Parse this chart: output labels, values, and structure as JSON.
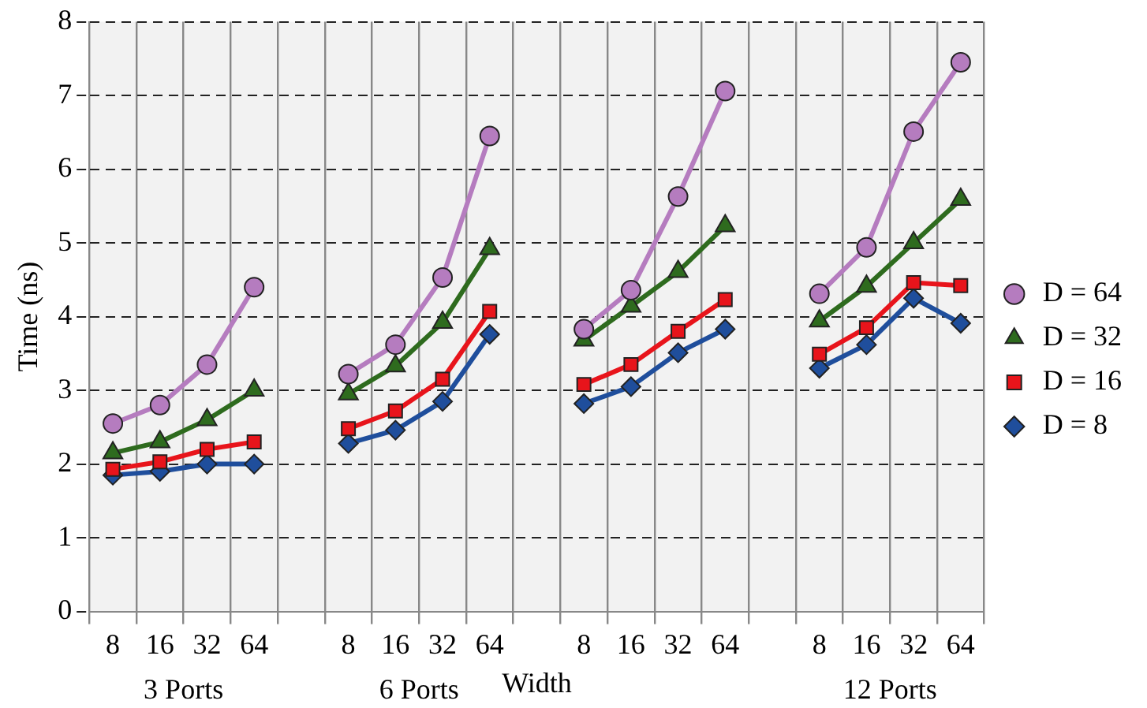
{
  "chart_data": {
    "type": "line",
    "xlabel": "Width",
    "ylabel": "Time (ns)",
    "categories": [
      "8",
      "16",
      "32",
      "64",
      null,
      "8",
      "16",
      "32",
      "64",
      null,
      "8",
      "16",
      "32",
      "64",
      null,
      "8",
      "16",
      "32",
      "64"
    ],
    "series": [
      {
        "name": "D = 8",
        "color": "#1f4e9c",
        "marker": "diamond",
        "values": [
          1.85,
          1.9,
          2.0,
          2.0,
          null,
          2.28,
          2.46,
          2.85,
          3.76,
          null,
          2.82,
          3.05,
          3.51,
          3.83,
          null,
          3.3,
          3.62,
          4.25,
          3.91
        ]
      },
      {
        "name": "D = 16",
        "color": "#e8141b",
        "marker": "square",
        "values": [
          1.93,
          2.03,
          2.2,
          2.3,
          null,
          2.48,
          2.72,
          3.15,
          4.07,
          null,
          3.08,
          3.35,
          3.8,
          4.23,
          null,
          3.49,
          3.85,
          4.46,
          4.42
        ]
      },
      {
        "name": "D = 32",
        "color": "#2e6b1e",
        "marker": "triangle",
        "values": [
          2.15,
          2.3,
          2.6,
          3.0,
          null,
          2.95,
          3.33,
          3.92,
          4.92,
          null,
          3.68,
          4.14,
          4.61,
          5.23,
          null,
          3.94,
          4.41,
          5.0,
          5.59
        ]
      },
      {
        "name": "D = 64",
        "color": "#b57cbf",
        "marker": "circle",
        "values": [
          2.55,
          2.8,
          3.35,
          4.4,
          null,
          3.22,
          3.62,
          4.53,
          6.45,
          null,
          3.83,
          4.36,
          5.63,
          7.06,
          null,
          4.31,
          4.94,
          6.51,
          7.45
        ]
      }
    ],
    "ylim": [
      0,
      8
    ],
    "yticks": [
      0,
      1,
      2,
      3,
      4,
      5,
      6,
      7,
      8
    ],
    "grid": true,
    "legend": "right",
    "line_style": "solid",
    "annotations": [
      "3 Ports",
      "6 Ports",
      "12 Ports"
    ]
  }
}
